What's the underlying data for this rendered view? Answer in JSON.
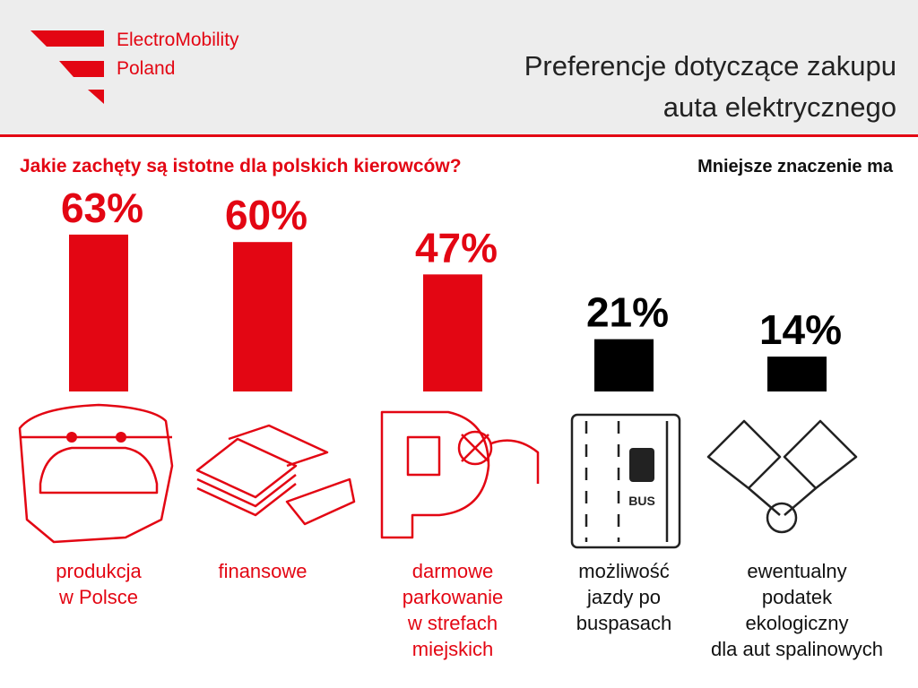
{
  "brand": [
    "ElectroMobility",
    "Poland"
  ],
  "chart_data": {
    "type": "bar",
    "title": [
      "Preferencje dotyczące zakupu",
      "auta elektrycznego"
    ],
    "subtitle": "Jakie zachęty są istotne dla polskich kierowców?",
    "annotation": "Mniejsze znaczenie ma",
    "categories": [
      [
        "produkcja",
        "w Polsce"
      ],
      [
        "finansowe"
      ],
      [
        "darmowe",
        "parkowanie",
        "w strefach",
        "miejskich"
      ],
      [
        "możliwość",
        "jazdy po",
        "buspasach"
      ],
      [
        "ewentualny",
        "podatek",
        "ekologiczny",
        "dla aut spalinowych"
      ]
    ],
    "values": [
      63,
      60,
      47,
      21,
      14
    ],
    "value_labels": [
      "63%",
      "60%",
      "47%",
      "21%",
      "14%"
    ],
    "colors": [
      "#e30613",
      "#e30613",
      "#e30613",
      "#000000",
      "#000000"
    ]
  }
}
